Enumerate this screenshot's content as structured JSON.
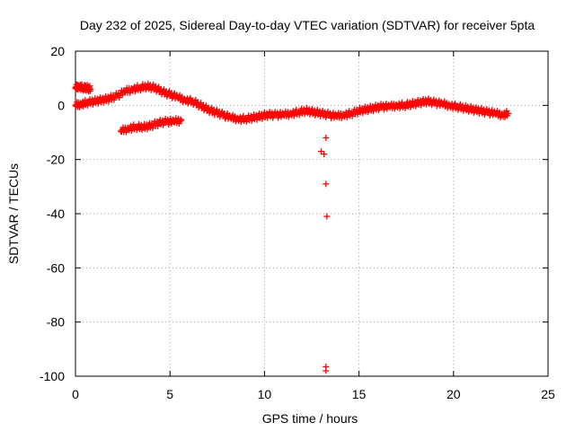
{
  "chart_data": {
    "type": "scatter",
    "title": "Day 232 of 2025, Sidereal Day-to-day VTEC variation (SDTVAR) for receiver 5pta",
    "xlabel": "GPS time / hours",
    "ylabel": "SDTVAR / TECUs",
    "xlim": [
      0,
      25
    ],
    "ylim": [
      -100,
      20
    ],
    "xticks": [
      0,
      5,
      10,
      15,
      20,
      25
    ],
    "yticks": [
      20,
      0,
      -20,
      -40,
      -60,
      -80,
      -100
    ],
    "xtick_labels": [
      "0",
      "5",
      "10",
      "15",
      "20",
      "25"
    ],
    "ytick_labels": [
      "20",
      "0",
      "-20",
      "-40",
      "-60",
      "-80",
      "-100"
    ],
    "grid": true,
    "marker": "plus",
    "color": "#ff0000",
    "series": [
      {
        "name": "main band",
        "x": [
          0.0,
          0.3,
          0.6,
          1.0,
          1.4,
          1.8,
          2.2,
          2.6,
          3.0,
          3.4,
          3.8,
          4.2,
          4.6,
          5.0,
          5.4,
          5.8,
          6.2,
          6.6,
          7.0,
          7.4,
          7.8,
          8.2,
          8.6,
          9.0,
          9.4,
          9.8,
          10.2,
          10.6,
          11.0,
          11.4,
          11.8,
          12.2,
          12.6,
          13.0,
          13.4,
          13.8,
          14.2,
          14.6,
          15.0,
          15.4,
          15.8,
          16.2,
          16.6,
          17.0,
          17.4,
          17.8,
          18.2,
          18.6,
          19.0,
          19.4,
          19.8,
          20.2,
          20.6,
          21.0,
          21.4,
          21.8,
          22.2,
          22.6,
          22.9
        ],
        "y": [
          0,
          0.5,
          1,
          1.5,
          2,
          2.5,
          3.5,
          5,
          6,
          6.5,
          7,
          6.5,
          5,
          4,
          3,
          2,
          1.5,
          0,
          -1.5,
          -2.5,
          -3.5,
          -4.5,
          -5,
          -5,
          -4.5,
          -4,
          -3.5,
          -3.5,
          -3.5,
          -3,
          -2.5,
          -2,
          -2.5,
          -3,
          -3.5,
          -4,
          -3.5,
          -3,
          -2,
          -1.5,
          -1,
          -0.5,
          -0.5,
          0,
          0,
          0.5,
          1,
          1.5,
          1,
          0.5,
          0,
          -0.5,
          -1,
          -1.5,
          -2,
          -2.5,
          -3,
          -3.5,
          -3
        ]
      },
      {
        "name": "early segment",
        "x": [
          0.0,
          0.2,
          0.4,
          0.6,
          0.8
        ],
        "y": [
          6.5,
          7,
          6.5,
          6.5,
          6
        ]
      },
      {
        "name": "lower segment",
        "x": [
          2.4,
          2.8,
          3.2,
          3.6,
          4.0,
          4.4,
          4.8,
          5.2,
          5.6
        ],
        "y": [
          -9.5,
          -8.5,
          -8,
          -8,
          -7.5,
          -6.5,
          -6,
          -6,
          -5.5
        ]
      },
      {
        "name": "outliers",
        "x": [
          13.0,
          13.15,
          13.25,
          13.25,
          13.3,
          13.25,
          13.25
        ],
        "y": [
          -17,
          -18,
          -12,
          -29,
          -41,
          -96.5,
          -98
        ]
      }
    ]
  }
}
